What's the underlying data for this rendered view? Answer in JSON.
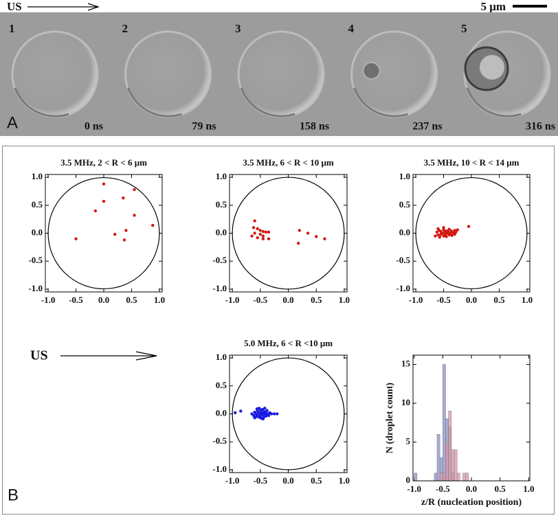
{
  "panel_a": {
    "label": "A",
    "us_label": "US",
    "scale_bar": "5 μm",
    "frames": [
      {
        "number": "1",
        "time": "0 ns"
      },
      {
        "number": "2",
        "time": "79 ns"
      },
      {
        "number": "3",
        "time": "158 ns"
      },
      {
        "number": "4",
        "time": "237 ns"
      },
      {
        "number": "5",
        "time": "316 ns"
      }
    ]
  },
  "panel_b": {
    "label": "B",
    "us_label": "US"
  },
  "chart_data": [
    {
      "type": "scatter",
      "title": "3.5 MHz,  2 < R < 6 μm",
      "color": "#d11a12",
      "x": [
        0,
        0.55,
        -0.15,
        0,
        0.35,
        0.55,
        0.88,
        0.4,
        0.2,
        0.37,
        -0.5
      ],
      "y": [
        0.88,
        0.78,
        0.4,
        0.57,
        0.63,
        0.32,
        0.14,
        0.05,
        -0.02,
        -0.12,
        -0.1
      ],
      "xlim": [
        -1.05,
        1.05
      ],
      "ylim": [
        -1.05,
        1.05
      ],
      "xticks": [
        {
          "value": -1,
          "label": "-1.0"
        },
        -0.5,
        {
          "value": 0,
          "label": "0.0"
        },
        0.5,
        {
          "value": 1,
          "label": "1.0"
        }
      ],
      "yticks": [
        {
          "value": -1,
          "label": "-1.0"
        },
        -0.5,
        {
          "value": 0,
          "label": "0.0"
        },
        0.5,
        {
          "value": 1,
          "label": "1.0"
        }
      ]
    },
    {
      "type": "scatter",
      "title": "3.5 MHz,  6 < R < 10 μm",
      "color": "#d11a12",
      "x": [
        -0.6,
        -0.62,
        -0.55,
        -0.5,
        -0.45,
        -0.4,
        -0.35,
        -0.6,
        -0.5,
        -0.45,
        -0.55,
        -0.45,
        -0.35,
        -0.65,
        0.2,
        0.35,
        0.5,
        0.65,
        0.18
      ],
      "y": [
        0.22,
        0.1,
        0.08,
        0.05,
        0.03,
        0.02,
        0.02,
        0,
        -0.02,
        -0.05,
        -0.08,
        -0.1,
        -0.1,
        -0.05,
        0.05,
        0,
        -0.06,
        -0.1,
        -0.18
      ],
      "xlim": [
        -1.05,
        1.05
      ],
      "ylim": [
        -1.05,
        1.05
      ],
      "xticks": [
        {
          "value": -1,
          "label": "-1.0"
        },
        -0.5,
        {
          "value": 0,
          "label": "0.0"
        },
        0.5,
        {
          "value": 1,
          "label": "1.0"
        }
      ],
      "yticks": [
        {
          "value": -1,
          "label": "-1.0"
        },
        -0.5,
        {
          "value": 0,
          "label": "0.0"
        },
        0.5,
        {
          "value": 1,
          "label": "1.0"
        }
      ]
    },
    {
      "type": "scatter",
      "title": "3.5 MHz,  10 < R < 14 μm",
      "color": "#d11a12",
      "x": [
        -0.62,
        -0.6,
        -0.58,
        -0.55,
        -0.55,
        -0.52,
        -0.5,
        -0.5,
        -0.48,
        -0.47,
        -0.45,
        -0.45,
        -0.43,
        -0.42,
        -0.4,
        -0.4,
        -0.38,
        -0.36,
        -0.35,
        -0.33,
        -0.3,
        -0.3,
        -0.28,
        -0.6,
        -0.57,
        -0.5,
        -0.65,
        -0.25,
        -0.05
      ],
      "y": [
        0.02,
        -0.03,
        0.05,
        -0.02,
        0.03,
        0,
        0.06,
        -0.05,
        0.02,
        -0.02,
        0.04,
        -0.06,
        0,
        0.03,
        -0.03,
        0.07,
        0,
        0.04,
        -0.04,
        0.01,
        0.05,
        -0.02,
        0.02,
        0.08,
        -0.07,
        0.1,
        -0.05,
        0.06,
        0.12
      ],
      "xlim": [
        -1.05,
        1.05
      ],
      "ylim": [
        -1.05,
        1.05
      ],
      "xticks": [
        {
          "value": -1,
          "label": "-1.0"
        },
        -0.5,
        {
          "value": 0,
          "label": "0.0"
        },
        0.5,
        {
          "value": 1,
          "label": "1.0"
        }
      ],
      "yticks": [
        {
          "value": -1,
          "label": "-1.0"
        },
        -0.5,
        {
          "value": 0,
          "label": "0.0"
        },
        0.5,
        {
          "value": 1,
          "label": "1.0"
        }
      ]
    },
    {
      "type": "scatter",
      "title": "5.0 MHz,  6 < R <10 μm",
      "color": "#1a1ae0",
      "x": [
        -0.95,
        -0.85,
        -0.25,
        -0.2,
        -0.65,
        -0.62,
        -0.6,
        -0.58,
        -0.57,
        -0.55,
        -0.55,
        -0.53,
        -0.52,
        -0.5,
        -0.5,
        -0.5,
        -0.48,
        -0.47,
        -0.46,
        -0.45,
        -0.44,
        -0.43,
        -0.42,
        -0.4,
        -0.4,
        -0.38,
        -0.37,
        -0.35,
        -0.33,
        -0.56,
        -0.48,
        -0.52,
        -0.6,
        -0.42,
        -0.3,
        -0.45
      ],
      "y": [
        0.02,
        0.05,
        0,
        0,
        0,
        -0.03,
        0.03,
        0,
        -0.05,
        0.05,
        -0.02,
        0.02,
        -0.06,
        0,
        0.07,
        -0.04,
        0.03,
        -0.02,
        0.08,
        0,
        -0.06,
        0.04,
        -0.01,
        0.02,
        -0.04,
        0.06,
        0,
        -0.03,
        0.02,
        0.09,
        -0.08,
        0.1,
        -0.07,
        0.1,
        0,
        -0.09
      ],
      "xlim": [
        -1.05,
        1.05
      ],
      "ylim": [
        -1.05,
        1.05
      ],
      "xticks": [
        {
          "value": -1,
          "label": "-1.0"
        },
        -0.5,
        {
          "value": 0,
          "label": "0.0"
        },
        0.5,
        {
          "value": 1,
          "label": "1.0"
        }
      ],
      "yticks": [
        {
          "value": -1,
          "label": "-1.0"
        },
        -0.5,
        {
          "value": 0,
          "label": "0.0"
        },
        0.5,
        {
          "value": 1,
          "label": "1.0"
        }
      ]
    },
    {
      "type": "histogram",
      "xlabel": "z/R (nucleation position)",
      "ylabel": "N (droplet count)",
      "bins": [
        -1,
        -0.95,
        -0.9,
        -0.85,
        -0.8,
        -0.75,
        -0.7,
        -0.65,
        -0.6,
        -0.55,
        -0.5,
        -0.45,
        -0.4,
        -0.35,
        -0.3,
        -0.25,
        -0.2,
        -0.15,
        -0.1,
        -0.05,
        0
      ],
      "series": [
        {
          "color": "#8e92c8",
          "values": [
            1,
            0,
            0,
            0,
            0,
            0,
            0,
            1,
            6,
            3,
            15,
            8,
            7,
            1,
            0,
            0,
            0,
            0,
            0,
            0
          ]
        },
        {
          "color": "#d99aa8",
          "values": [
            0,
            0,
            0,
            0,
            0,
            0,
            0,
            0,
            0,
            1,
            1,
            5,
            9,
            4,
            4,
            1,
            0,
            1,
            1,
            0
          ]
        }
      ],
      "xlim": [
        -1.02,
        1.02
      ],
      "ylim": [
        0,
        16.2
      ],
      "xticks": [
        {
          "value": -1,
          "label": "-1.0"
        },
        -0.5,
        {
          "value": 0,
          "label": "0.0"
        },
        0.5,
        {
          "value": 1,
          "label": "1.0"
        }
      ],
      "yticks": [
        0,
        5,
        10,
        15
      ]
    }
  ]
}
